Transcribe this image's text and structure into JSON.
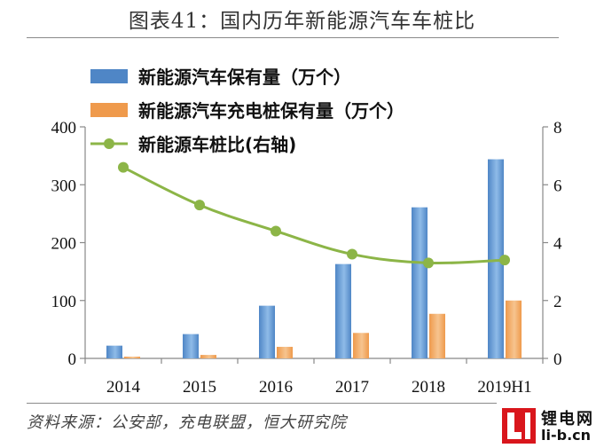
{
  "header": {
    "title": "图表41：国内历年新能源汽车车桩比"
  },
  "footer": {
    "source": "资料来源：公安部，充电联盟，恒大研究院"
  },
  "watermark": {
    "name": "锂电网",
    "url": "li-b.cn"
  },
  "colors": {
    "bar_vehicles": "#4f86c6",
    "bar_chargers": "#ef9a4c",
    "line": "#8cb547"
  },
  "chart_data": {
    "type": "bar",
    "categories": [
      "2014",
      "2015",
      "2016",
      "2017",
      "2018",
      "2019H1"
    ],
    "series": [
      {
        "name": "新能源汽车保有量（万个）",
        "type": "bar",
        "axis": "left",
        "values": [
          22,
          42,
          91,
          163,
          261,
          344
        ]
      },
      {
        "name": "新能源汽车充电桩保有量（万个）",
        "type": "bar",
        "axis": "left",
        "values": [
          3,
          6,
          20,
          44,
          77,
          100
        ]
      },
      {
        "name": "新能源车桩比(右轴)",
        "type": "line",
        "axis": "right",
        "values": [
          6.6,
          5.3,
          4.4,
          3.6,
          3.3,
          3.4
        ]
      }
    ],
    "y_left": {
      "min": 0,
      "max": 400,
      "ticks": [
        "0",
        "100",
        "200",
        "300",
        "400"
      ]
    },
    "y_right": {
      "min": 0,
      "max": 8,
      "ticks": [
        "0",
        "2",
        "4",
        "6",
        "8"
      ]
    },
    "grid": false,
    "legend": "top-left"
  }
}
